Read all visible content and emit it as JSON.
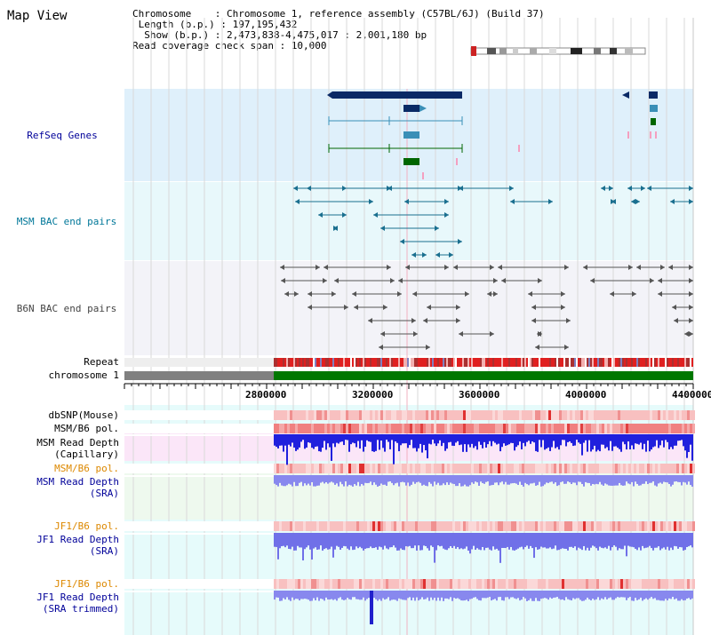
{
  "header": {
    "title": "Map View",
    "info": [
      "Chromosome    : Chromosome 1, reference assembly (C57BL/6J) (Build 37)",
      " Length (b.p.) : 197,195,432",
      "  Show (b.p.) : 2,473,838-4,475,017 : 2,001,180 bp",
      "Read coverage check span : 10,000"
    ]
  },
  "tracks": {
    "refseq": "RefSeq Genes",
    "msm_bac": "MSM BAC end pairs",
    "b6n_bac": "B6N BAC end pairs",
    "repeat": "Repeat",
    "chromosome": "chromosome 1",
    "dbsnp": "dbSNP(Mouse)",
    "msm_pol1": "MSM/B6 pol.",
    "msm_depth_cap_1": "MSM Read Depth",
    "msm_depth_cap_2": "(Capillary)",
    "msm_pol2": "MSM/B6 pol.",
    "msm_depth_sra_1": "MSM Read Depth",
    "msm_depth_sra_2": "(SRA)",
    "jf1_pol1": "JF1/B6 pol.",
    "jf1_depth_1": "JF1 Read Depth",
    "jf1_depth_2": "(SRA)",
    "jf1_pol2": "JF1/B6 pol.",
    "jf1_trim_1": "JF1 Read Depth",
    "jf1_trim_2": "(SRA trimmed)"
  },
  "axis": {
    "ticks": [
      "2800000",
      "3200000",
      "3600000",
      "4000000",
      "4400000"
    ]
  },
  "colors": {
    "refseq_bg": "#dff0fb",
    "msm_bg": "#e8f8fb",
    "b6n_bg": "#f3f3f8",
    "gene_dark": "#0a2a66",
    "gene_mid": "#3a8fb7",
    "gene_green": "#006600",
    "msm_line": "#1a6f8f",
    "b6n_line": "#555555",
    "label_blue": "#000099",
    "label_msm": "#007799",
    "label_orange": "#dd8800",
    "label_gray": "#444444"
  }
}
